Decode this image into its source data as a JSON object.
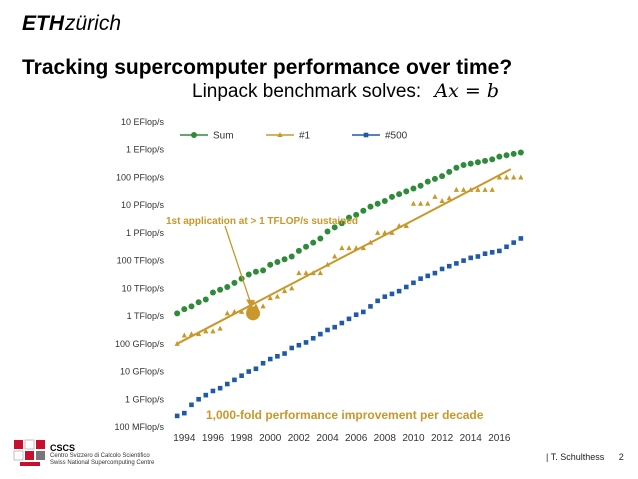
{
  "header": {
    "logo_eth": "ETH",
    "logo_zurich": "zürich"
  },
  "slide": {
    "title": "Tracking supercomputer performance over time?",
    "subtitle": "Linpack benchmark solves:",
    "equation": "Ax = b"
  },
  "footer": {
    "org_short": "CSCS",
    "org_line1": "Centro Svizzero di Calcolo Scientifico",
    "org_line2": "Swiss National Supercomputing Centre",
    "separator": "|",
    "author": "T. Schulthess",
    "page": "2"
  },
  "colors": {
    "sum": "#2e8b3a",
    "first": "#c9972a",
    "last": "#1f5aa6",
    "annotation": "#c9972a",
    "axis_text": "#333333"
  },
  "chart_data": {
    "type": "scatter",
    "y_scale": "log10",
    "ylim": [
      8,
      19
    ],
    "xlim": [
      1993,
      2018
    ],
    "y_ticks": [
      {
        "value": 8,
        "label": "100 MFlop/s"
      },
      {
        "value": 9,
        "label": "1 GFlop/s"
      },
      {
        "value": 10,
        "label": "10 GFlop/s"
      },
      {
        "value": 11,
        "label": "100 GFlop/s"
      },
      {
        "value": 12,
        "label": "1 TFlop/s"
      },
      {
        "value": 13,
        "label": "10 TFlop/s"
      },
      {
        "value": 14,
        "label": "100 TFlop/s"
      },
      {
        "value": 15,
        "label": "1 PFlop/s"
      },
      {
        "value": 16,
        "label": "10 PFlop/s"
      },
      {
        "value": 17,
        "label": "100 PFlop/s"
      },
      {
        "value": 18,
        "label": "1 EFlop/s"
      },
      {
        "value": 19,
        "label": "10 EFlop/s"
      }
    ],
    "x_ticks": [
      1994,
      1996,
      1998,
      2000,
      2002,
      2004,
      2006,
      2008,
      2010,
      2012,
      2014,
      2016
    ],
    "legend": {
      "placement": "top-left"
    },
    "series": [
      {
        "name": "Sum",
        "marker": "circle",
        "color": "#2e8b3a",
        "x": [
          1993.5,
          1994.0,
          1994.5,
          1995.0,
          1995.5,
          1996.0,
          1996.5,
          1997.0,
          1997.5,
          1998.0,
          1998.5,
          1999.0,
          1999.5,
          2000.0,
          2000.5,
          2001.0,
          2001.5,
          2002.0,
          2002.5,
          2003.0,
          2003.5,
          2004.0,
          2004.5,
          2005.0,
          2005.5,
          2006.0,
          2006.5,
          2007.0,
          2007.5,
          2008.0,
          2008.5,
          2009.0,
          2009.5,
          2010.0,
          2010.5,
          2011.0,
          2011.5,
          2012.0,
          2012.5,
          2013.0,
          2013.5,
          2014.0,
          2014.5,
          2015.0,
          2015.5,
          2016.0,
          2016.5,
          2017.0,
          2017.5
        ],
        "y": [
          12.1,
          12.25,
          12.35,
          12.5,
          12.6,
          12.85,
          12.95,
          13.05,
          13.2,
          13.35,
          13.5,
          13.6,
          13.65,
          13.85,
          13.95,
          14.05,
          14.15,
          14.35,
          14.5,
          14.65,
          14.8,
          15.05,
          15.2,
          15.35,
          15.55,
          15.65,
          15.8,
          15.95,
          16.05,
          16.15,
          16.3,
          16.4,
          16.5,
          16.6,
          16.7,
          16.85,
          16.95,
          17.05,
          17.2,
          17.35,
          17.45,
          17.5,
          17.55,
          17.6,
          17.65,
          17.75,
          17.8,
          17.85,
          17.9
        ]
      },
      {
        "name": "#1",
        "marker": "triangle",
        "color": "#c9972a",
        "x": [
          1993.5,
          1994.0,
          1994.5,
          1995.0,
          1995.5,
          1996.0,
          1996.5,
          1997.0,
          1997.5,
          1998.0,
          1998.5,
          1999.0,
          1999.5,
          2000.0,
          2000.5,
          2001.0,
          2001.5,
          2002.0,
          2002.5,
          2003.0,
          2003.5,
          2004.0,
          2004.5,
          2005.0,
          2005.5,
          2006.0,
          2006.5,
          2007.0,
          2007.5,
          2008.0,
          2008.5,
          2009.0,
          2009.5,
          2010.0,
          2010.5,
          2011.0,
          2011.5,
          2012.0,
          2012.5,
          2013.0,
          2013.5,
          2014.0,
          2014.5,
          2015.0,
          2015.5,
          2016.0,
          2016.5,
          2017.0,
          2017.5
        ],
        "y": [
          11.0,
          11.3,
          11.35,
          11.35,
          11.45,
          11.45,
          11.55,
          12.1,
          12.15,
          12.15,
          12.25,
          12.35,
          12.35,
          12.65,
          12.7,
          12.9,
          13.0,
          13.55,
          13.55,
          13.55,
          13.55,
          13.85,
          14.15,
          14.45,
          14.45,
          14.45,
          14.45,
          14.65,
          15.0,
          15.0,
          15.0,
          15.25,
          15.25,
          16.05,
          16.05,
          16.05,
          16.3,
          16.15,
          16.25,
          16.55,
          16.55,
          16.55,
          16.55,
          16.55,
          16.55,
          17.0,
          17.0,
          17.0,
          17.0
        ]
      },
      {
        "name": "#500",
        "marker": "square",
        "color": "#1f5aa6",
        "x": [
          1993.5,
          1994.0,
          1994.5,
          1995.0,
          1995.5,
          1996.0,
          1996.5,
          1997.0,
          1997.5,
          1998.0,
          1998.5,
          1999.0,
          1999.5,
          2000.0,
          2000.5,
          2001.0,
          2001.5,
          2002.0,
          2002.5,
          2003.0,
          2003.5,
          2004.0,
          2004.5,
          2005.0,
          2005.5,
          2006.0,
          2006.5,
          2007.0,
          2007.5,
          2008.0,
          2008.5,
          2009.0,
          2009.5,
          2010.0,
          2010.5,
          2011.0,
          2011.5,
          2012.0,
          2012.5,
          2013.0,
          2013.5,
          2014.0,
          2014.5,
          2015.0,
          2015.5,
          2016.0,
          2016.5,
          2017.0,
          2017.5
        ],
        "y": [
          8.4,
          8.5,
          8.8,
          9.0,
          9.15,
          9.3,
          9.4,
          9.55,
          9.7,
          9.85,
          10.0,
          10.1,
          10.3,
          10.45,
          10.55,
          10.65,
          10.85,
          10.95,
          11.05,
          11.2,
          11.35,
          11.5,
          11.6,
          11.75,
          11.9,
          12.05,
          12.15,
          12.35,
          12.55,
          12.7,
          12.8,
          12.9,
          13.05,
          13.2,
          13.35,
          13.45,
          13.55,
          13.7,
          13.8,
          13.9,
          14.0,
          14.1,
          14.15,
          14.25,
          14.3,
          14.35,
          14.5,
          14.65,
          14.8
        ]
      }
    ],
    "trendline": {
      "color": "#c9972a",
      "x": [
        1993.5,
        2016.8
      ],
      "y": [
        11.0,
        17.3
      ]
    },
    "annotations": [
      {
        "text": "1st application at > 1 TFLOP/s sustained",
        "x": 1998.8,
        "y": 12.1,
        "marker": "big-circle"
      },
      {
        "text": "1,000-fold performance improvement per decade"
      }
    ]
  }
}
